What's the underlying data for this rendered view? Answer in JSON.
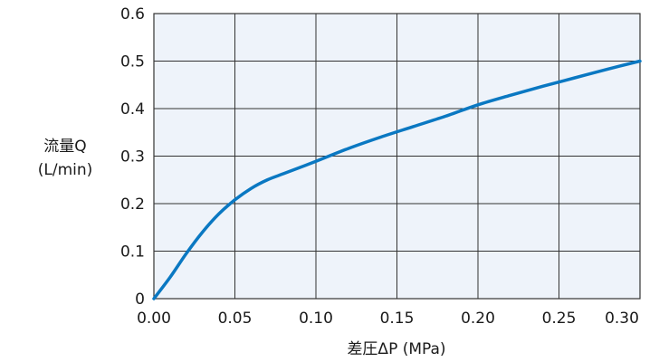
{
  "colors": {
    "plot_background": "#eef3fa",
    "grid": "#333333",
    "series_line": "#0a78c2",
    "text": "#1a1a1a"
  },
  "chart_data": {
    "type": "line",
    "title": "",
    "xlabel": "差圧ΔP (MPa)",
    "ylabel_line1": "流量Q",
    "ylabel_line2": "(L/min)",
    "xlim": [
      0,
      0.3
    ],
    "ylim": [
      0,
      0.6
    ],
    "x_ticks": [
      0.0,
      0.05,
      0.1,
      0.15,
      0.2,
      0.25,
      0.3
    ],
    "x_tick_labels": [
      "0.00",
      "0.05",
      "0.10",
      "0.15",
      "0.20",
      "0.25",
      "0.30"
    ],
    "y_ticks": [
      0,
      0.1,
      0.2,
      0.3,
      0.4,
      0.5,
      0.6
    ],
    "y_tick_labels": [
      "0",
      "0.1",
      "0.2",
      "0.3",
      "0.4",
      "0.5",
      "0.6"
    ],
    "grid": true,
    "legend": "none",
    "series": [
      {
        "x": [
          0.0,
          0.01,
          0.02,
          0.03,
          0.04,
          0.05,
          0.06,
          0.07,
          0.08,
          0.09,
          0.1,
          0.12,
          0.14,
          0.16,
          0.18,
          0.2,
          0.22,
          0.24,
          0.26,
          0.28,
          0.3
        ],
        "y": [
          0.0,
          0.045,
          0.095,
          0.14,
          0.178,
          0.208,
          0.232,
          0.25,
          0.263,
          0.276,
          0.289,
          0.316,
          0.34,
          0.362,
          0.384,
          0.408,
          0.428,
          0.447,
          0.465,
          0.483,
          0.5
        ]
      }
    ]
  }
}
